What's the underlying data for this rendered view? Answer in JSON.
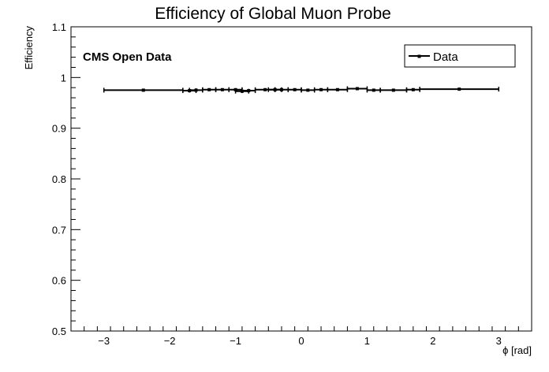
{
  "chart_data": {
    "type": "scatter",
    "title": "Efficiency of Global Muon Probe",
    "xlabel": "ϕ [rad]",
    "ylabel": "Efficiency",
    "xlim": [
      -3.5,
      3.5
    ],
    "ylim": [
      0.5,
      1.1
    ],
    "xticks": [
      -3,
      -2,
      -1,
      0,
      1,
      2,
      3
    ],
    "xtick_labels": [
      "−3",
      "−2",
      "−1",
      "0",
      "1",
      "2",
      "3"
    ],
    "yticks": [
      0.5,
      0.6,
      0.7,
      0.8,
      0.9,
      1.0,
      1.1
    ],
    "ytick_labels": [
      "0.5",
      "0.6",
      "0.7",
      "0.8",
      "0.9",
      "1",
      "1.1"
    ],
    "annotation": "CMS Open Data",
    "legend": {
      "entries": [
        "Data"
      ],
      "placement": "top-right"
    },
    "grid": false,
    "series": [
      {
        "name": "Data",
        "points": [
          {
            "x": -2.4,
            "xerr": 0.6,
            "y": 0.975
          },
          {
            "x": -1.7,
            "xerr": 0.1,
            "y": 0.974
          },
          {
            "x": -1.6,
            "xerr": 0.1,
            "y": 0.975
          },
          {
            "x": -1.4,
            "xerr": 0.1,
            "y": 0.976
          },
          {
            "x": -1.2,
            "xerr": 0.1,
            "y": 0.976
          },
          {
            "x": -1.0,
            "xerr": 0.1,
            "y": 0.976
          },
          {
            "x": -0.9,
            "xerr": 0.1,
            "y": 0.973
          },
          {
            "x": -0.8,
            "xerr": 0.1,
            "y": 0.974
          },
          {
            "x": -0.55,
            "xerr": 0.15,
            "y": 0.976
          },
          {
            "x": -0.4,
            "xerr": 0.1,
            "y": 0.976
          },
          {
            "x": -0.3,
            "xerr": 0.1,
            "y": 0.976
          },
          {
            "x": -0.1,
            "xerr": 0.1,
            "y": 0.976
          },
          {
            "x": 0.1,
            "xerr": 0.1,
            "y": 0.975
          },
          {
            "x": 0.3,
            "xerr": 0.1,
            "y": 0.976
          },
          {
            "x": 0.55,
            "xerr": 0.15,
            "y": 0.976
          },
          {
            "x": 0.85,
            "xerr": 0.15,
            "y": 0.978
          },
          {
            "x": 1.1,
            "xerr": 0.1,
            "y": 0.975
          },
          {
            "x": 1.4,
            "xerr": 0.2,
            "y": 0.975
          },
          {
            "x": 1.7,
            "xerr": 0.1,
            "y": 0.976
          },
          {
            "x": 2.4,
            "xerr": 0.6,
            "y": 0.977
          }
        ]
      }
    ]
  }
}
